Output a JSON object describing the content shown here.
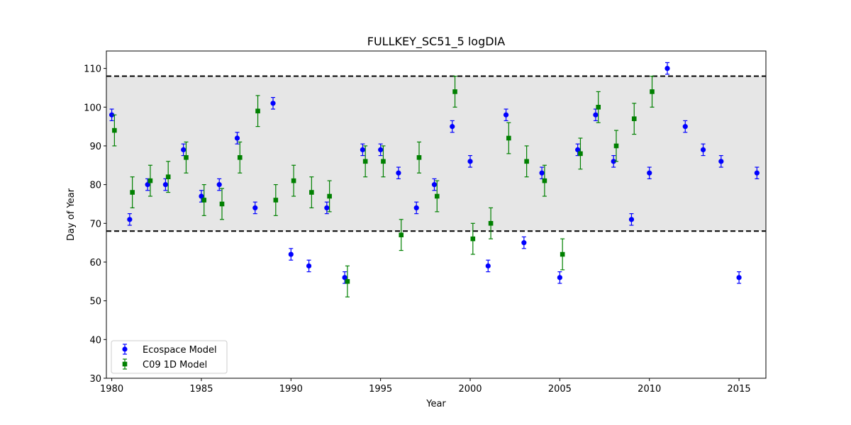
{
  "chart_data": {
    "type": "scatter",
    "title": "FULLKEY_SC51_5 logDIA",
    "xlabel": "Year",
    "ylabel": "Day of Year",
    "xlim": [
      1979.7,
      2016.5
    ],
    "ylim": [
      30,
      114.5
    ],
    "x_ticks": [
      1980,
      1985,
      1990,
      1995,
      2000,
      2005,
      2010,
      2015
    ],
    "y_ticks": [
      30,
      40,
      50,
      60,
      70,
      80,
      90,
      100,
      110
    ],
    "band": {
      "low": 68,
      "high": 108,
      "color": "#e6e6e6"
    },
    "reference_lines": [
      68,
      108
    ],
    "grid": false,
    "legend_position": "lower-left",
    "series": [
      {
        "name": "Ecospace Model",
        "color": "#0000ff",
        "marker": "circle",
        "error": 1.5,
        "x": [
          1980,
          1981,
          1982,
          1983,
          1984,
          1985,
          1986,
          1987,
          1988,
          1989,
          1990,
          1991,
          1992,
          1993,
          1994,
          1995,
          1996,
          1997,
          1998,
          1999,
          2000,
          2001,
          2002,
          2003,
          2004,
          2005,
          2006,
          2007,
          2008,
          2009,
          2010,
          2011,
          2012,
          2013,
          2014,
          2015,
          2016
        ],
        "y": [
          98,
          71,
          80,
          80,
          89,
          77,
          80,
          92,
          74,
          101,
          62,
          59,
          74,
          56,
          89,
          89,
          83,
          74,
          80,
          95,
          86,
          59,
          98,
          65,
          83,
          56,
          89,
          98,
          86,
          71,
          83,
          110,
          95,
          89,
          86,
          56,
          83
        ]
      },
      {
        "name": "C09 1D Model",
        "color": "#008000",
        "marker": "square",
        "error": 4,
        "x": [
          1980.15,
          1981.15,
          1982.15,
          1983.15,
          1984.15,
          1985.15,
          1986.15,
          1987.15,
          1988.15,
          1989.15,
          1990.15,
          1991.15,
          1992.15,
          1993.15,
          1994.15,
          1995.15,
          1996.15,
          1997.15,
          1998.15,
          1999.15,
          2000.15,
          2001.15,
          2002.15,
          2003.15,
          2004.15,
          2005.15,
          2006.15,
          2007.15,
          2008.15,
          2009.15,
          2010.15
        ],
        "y": [
          94,
          78,
          81,
          82,
          87,
          76,
          75,
          87,
          99,
          76,
          81,
          78,
          77,
          55,
          86,
          86,
          67,
          87,
          77,
          104,
          66,
          70,
          92,
          86,
          81,
          62,
          88,
          100,
          90,
          97,
          104
        ]
      }
    ]
  }
}
